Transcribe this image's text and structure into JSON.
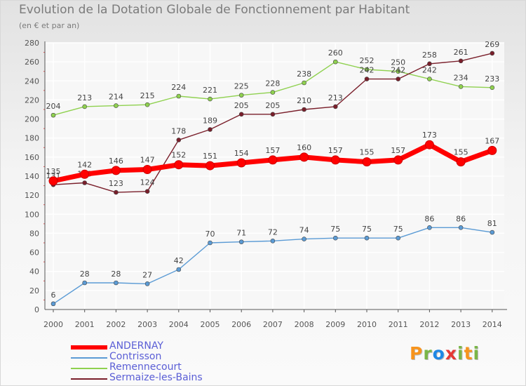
{
  "title": "Evolution de la Dotation Globale de Fonctionnement par Habitant",
  "subtitle": "(en € et par an)",
  "logo": {
    "letters": [
      "P",
      "r",
      "o",
      "x",
      "i",
      "t",
      "i"
    ],
    "colors": [
      "#f7941d",
      "#7ab648",
      "#1e88e5",
      "#e53935",
      "#7ab648",
      "#f7941d",
      "#7ab648"
    ]
  },
  "chart_data": {
    "type": "line",
    "title": "Evolution de la Dotation Globale de Fonctionnement par Habitant",
    "ylim": [
      0,
      280
    ],
    "y_ticks": [
      0,
      20,
      40,
      60,
      80,
      100,
      120,
      140,
      160,
      180,
      200,
      220,
      240,
      260,
      280
    ],
    "grid": true,
    "legend_position": "bottom-left",
    "categories": [
      "2000",
      "2001",
      "2002",
      "2003",
      "2004",
      "2005",
      "2006",
      "2007",
      "2008",
      "2009",
      "2010",
      "2011",
      "2012",
      "2013",
      "2014"
    ],
    "series": [
      {
        "name": "Remennecourt",
        "color": "#8fd14f",
        "values": [
          204,
          213,
          214,
          215,
          224,
          221,
          225,
          228,
          238,
          260,
          252,
          250,
          242,
          234,
          233
        ]
      },
      {
        "name": "Sermaize-les-Bains",
        "color": "#7a1f2b",
        "values": [
          131,
          133,
          123,
          124,
          178,
          189,
          205,
          205,
          210,
          213,
          242,
          242,
          258,
          261,
          269
        ]
      },
      {
        "name": "Contrisson",
        "color": "#5b9bd5",
        "values": [
          6,
          28,
          28,
          27,
          42,
          70,
          71,
          72,
          74,
          75,
          75,
          75,
          86,
          86,
          81
        ]
      },
      {
        "name": "ANDERNAY",
        "color": "#ff0000",
        "values": [
          135,
          142,
          146,
          147,
          152,
          151,
          154,
          157,
          160,
          157,
          155,
          157,
          173,
          155,
          167
        ]
      }
    ]
  },
  "legend": [
    {
      "name": "ANDERNAY",
      "color": "#ff0000"
    },
    {
      "name": "Contrisson",
      "color": "#5b9bd5"
    },
    {
      "name": "Remennecourt",
      "color": "#8fd14f"
    },
    {
      "name": "Sermaize-les-Bains",
      "color": "#7a1f2b"
    }
  ]
}
